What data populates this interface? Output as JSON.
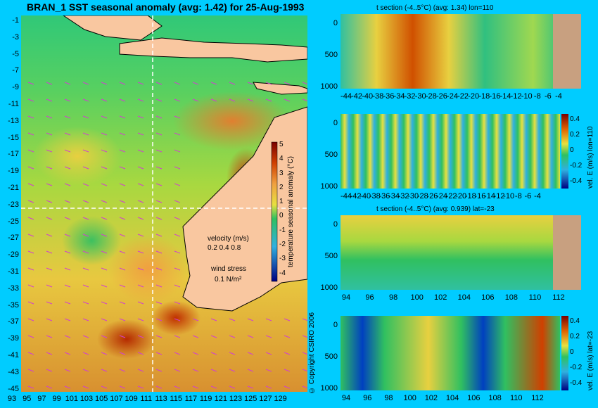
{
  "main_title": "BRAN_1  SST seasonal anomaly  (avg: 1.42) for 25-Aug-1993",
  "copyright": "© Copyright CSIRO 2006",
  "map": {
    "lat_labels": [
      "-1",
      "-3",
      "-5",
      "-7",
      "-9",
      "-11",
      "-13",
      "-15",
      "-17",
      "-19",
      "-21",
      "-23",
      "-25",
      "-27",
      "-29",
      "-31",
      "-33",
      "-35",
      "-37",
      "-39",
      "-41",
      "-43",
      "-45"
    ],
    "lon_labels": [
      "93",
      "95",
      "97",
      "99",
      "101",
      "103",
      "105",
      "107",
      "109",
      "111",
      "113",
      "115",
      "117",
      "119",
      "121",
      "123",
      "125",
      "127",
      "129"
    ],
    "colorbar_label": "temperature seasonal anomaly (°C)",
    "colorbar_ticks": [
      "5",
      "4",
      "3",
      "2",
      "1",
      "0",
      "-1",
      "-2",
      "-3",
      "-4"
    ],
    "velocity_label": "velocity (m/s)",
    "velocity_scale": "0.2 0.4 0.8",
    "wind_label": "wind stress",
    "wind_scale": "0.1 N/m²",
    "colors": {
      "land": "#f9c7a0",
      "background": "#00ccff",
      "arrow": "#d040d0",
      "guide": "#ffffff"
    }
  },
  "panels": [
    {
      "title": "t section (-4..5°C) (avg: 1.34) lon=110",
      "y_ticks": [
        "0",
        "500",
        "1000"
      ],
      "x_ticks": [
        "-44",
        "-42",
        "-40",
        "-38",
        "-36",
        "-34",
        "-32",
        "-30",
        "-28",
        "-26",
        "-24",
        "-22",
        "-20",
        "-18",
        "-16",
        "-14",
        "-12",
        "-10",
        "-8",
        "-6",
        "-4"
      ]
    },
    {
      "title": "",
      "y_ticks": [
        "0",
        "500",
        "1000"
      ],
      "x_ticks": [
        "-44",
        "-42",
        "-40",
        "-38",
        "-36",
        "-34",
        "-32",
        "-30",
        "-28",
        "-26",
        "-24",
        "-22",
        "-20",
        "-18",
        "-16",
        "-14",
        "-12",
        "-10",
        "-8",
        "-6",
        "-4"
      ],
      "cbar_label": "vel. E (m/s) lon=110",
      "cbar_ticks": [
        "0.4",
        "0.2",
        "0",
        "-0.2",
        "-0.4"
      ]
    },
    {
      "title": "t section (-4..5°C) (avg: 0.939) lat=-23",
      "y_ticks": [
        "0",
        "500",
        "1000"
      ],
      "x_ticks": [
        "94",
        "96",
        "98",
        "100",
        "102",
        "104",
        "106",
        "108",
        "110",
        "112"
      ]
    },
    {
      "title": "",
      "y_ticks": [
        "0",
        "500",
        "1000"
      ],
      "x_ticks": [
        "94",
        "96",
        "98",
        "100",
        "102",
        "104",
        "106",
        "108",
        "110",
        "112"
      ],
      "cbar_label": "vel. E (m/s) lat=-23",
      "cbar_ticks": [
        "0.4",
        "0.2",
        "0",
        "-0.2",
        "-0.4"
      ]
    }
  ]
}
